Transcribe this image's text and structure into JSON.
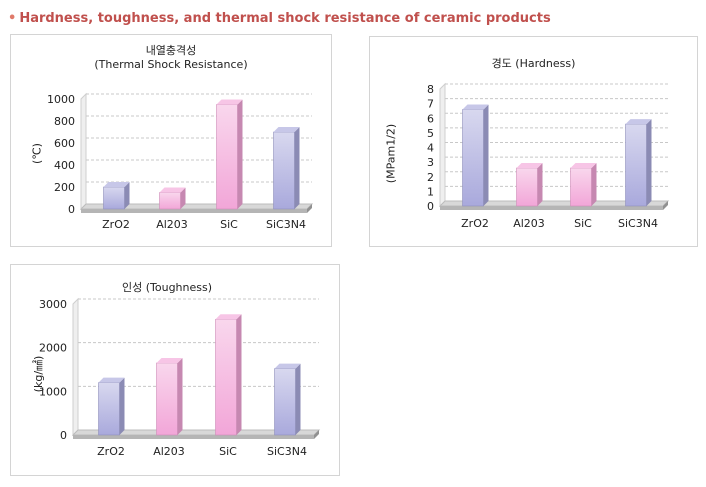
{
  "page_title": "Hardness, toughness, and thermal shock resistance of ceramic products",
  "colors": {
    "heading": "#c0504d",
    "blue_bar": "#a9a9dc",
    "pink_bar": "#f2a6d8",
    "floor": "#b5b5b5",
    "grid": "#c8c8c8"
  },
  "chart_data": [
    {
      "type": "bar",
      "title_line1": "내열충격성",
      "title_line2": "(Thermal Shock Resistance)",
      "ylabel": "(℃)",
      "xlabel": "",
      "categories": [
        "ZrO2",
        "Al203",
        "SiC",
        "SiC3N4"
      ],
      "values": [
        200,
        150,
        950,
        700
      ],
      "bar_colors": [
        "blue",
        "pink",
        "pink",
        "blue"
      ],
      "ylim": [
        0,
        1000
      ],
      "yticks": [
        0,
        200,
        400,
        600,
        800,
        1000
      ],
      "grid": true,
      "style": "3d"
    },
    {
      "type": "bar",
      "title_line1": "경도 (Hardness)",
      "title_line2": "",
      "ylabel": "(MPam1/2)",
      "xlabel": "",
      "categories": [
        "ZrO2",
        "Al203",
        "SiC",
        "SiC3N4"
      ],
      "values": [
        6.6,
        2.6,
        2.6,
        5.6
      ],
      "bar_colors": [
        "blue",
        "pink",
        "pink",
        "blue"
      ],
      "ylim": [
        0,
        8
      ],
      "yticks": [
        0,
        1,
        2,
        3,
        4,
        5,
        6,
        7,
        8
      ],
      "grid": true,
      "style": "3d"
    },
    {
      "type": "bar",
      "title_line1": "인성 (Toughness)",
      "title_line2": "",
      "ylabel": "(kg/㎟)",
      "xlabel": "",
      "categories": [
        "ZrO2",
        "Al203",
        "SiC",
        "SiC3N4"
      ],
      "values": [
        1200,
        1650,
        2650,
        1520
      ],
      "bar_colors": [
        "blue",
        "pink",
        "pink",
        "blue"
      ],
      "ylim": [
        0,
        3000
      ],
      "yticks": [
        0,
        1000,
        2000,
        3000
      ],
      "grid": true,
      "style": "3d"
    }
  ]
}
